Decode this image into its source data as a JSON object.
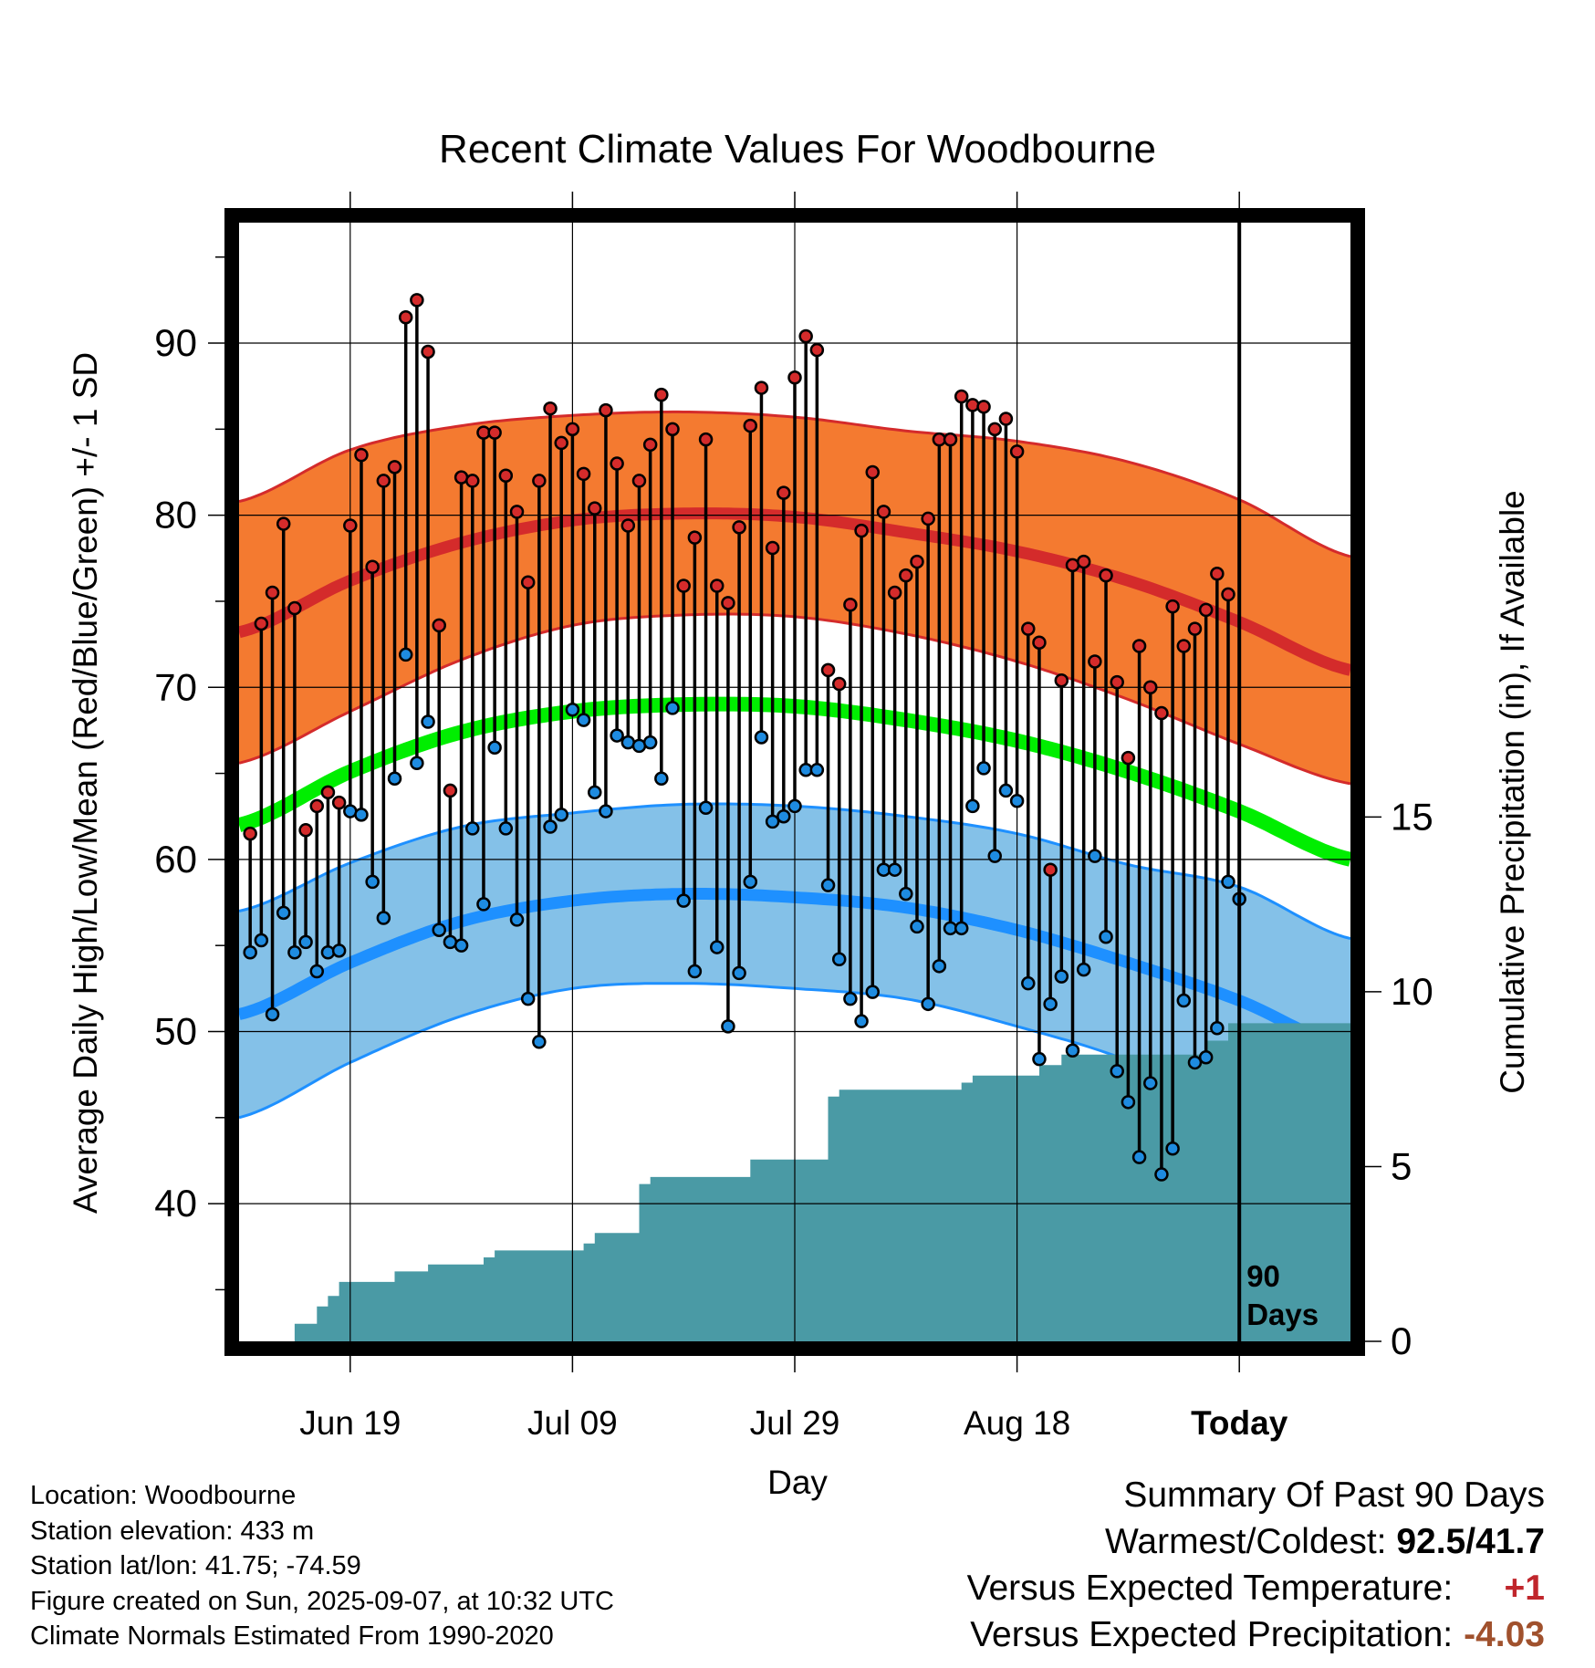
{
  "chart_data": {
    "type": "line",
    "title": "Recent Climate Values For Woodbourne",
    "xlabel": "Day",
    "ylabel": "Average Daily High/Low/Mean (Red/Blue/Green) +/- 1 SD",
    "y2label": "Cumulative Precipitation (in), If Available",
    "x_tick_labels": [
      "Jun 19",
      "Jul 09",
      "Jul 29",
      "Aug 18",
      "Today"
    ],
    "y_ticks": [
      40,
      50,
      60,
      70,
      80,
      90
    ],
    "y2_ticks": [
      0,
      5,
      10,
      15
    ],
    "ylim": [
      32,
      97
    ],
    "y2lim": [
      0,
      32
    ],
    "xlim_days": [
      -90,
      10
    ],
    "today_label": "90\nDays",
    "grid": true,
    "colors": {
      "high_band": "#f47a30",
      "high_line": "#d42b2b",
      "low_band": "#84c1e8",
      "low_line": "#1e90ff",
      "mean_line": "#00ee00",
      "precip_fill": "#4a9aa5",
      "high_marker": "#d42b2b",
      "low_marker": "#1e8be0"
    },
    "normals": {
      "x": [
        -90,
        -80,
        -70,
        -60,
        -50,
        -40,
        -30,
        -20,
        -10,
        0,
        10
      ],
      "high_mean": [
        73.2,
        76.2,
        78.4,
        79.7,
        80.1,
        79.9,
        79.0,
        77.9,
        76.2,
        73.8,
        71.0
      ],
      "high_sd": [
        7.6,
        7.6,
        6.8,
        6.1,
        5.9,
        5.8,
        5.9,
        6.4,
        6.9,
        7.1,
        6.6
      ],
      "low_mean": [
        51.0,
        54.0,
        56.4,
        57.6,
        58.0,
        57.8,
        57.2,
        55.9,
        54.0,
        51.8,
        49.0
      ],
      "low_sd": [
        6.0,
        5.8,
        5.5,
        5.1,
        5.2,
        5.3,
        5.3,
        5.6,
        5.7,
        6.6,
        6.4
      ],
      "mean": [
        62.0,
        65.1,
        67.4,
        68.6,
        69.0,
        68.9,
        68.1,
        66.9,
        65.1,
        62.8,
        60.0
      ]
    },
    "series": [
      {
        "name": "High",
        "x": [
          -89,
          -88,
          -87,
          -86,
          -85,
          -84,
          -83,
          -82,
          -81,
          -80,
          -79,
          -78,
          -77,
          -76,
          -75,
          -74,
          -73,
          -72,
          -71,
          -70,
          -69,
          -68,
          -67,
          -66,
          -65,
          -64,
          -63,
          -62,
          -61,
          -60,
          -59,
          -58,
          -57,
          -56,
          -55,
          -54,
          -53,
          -52,
          -51,
          -50,
          -49,
          -48,
          -47,
          -46,
          -45,
          -44,
          -43,
          -42,
          -41,
          -40,
          -39,
          -38,
          -37,
          -36,
          -35,
          -34,
          -33,
          -32,
          -31,
          -30,
          -29,
          -28,
          -27,
          -26,
          -25,
          -24,
          -23,
          -22,
          -21,
          -20,
          -19,
          -18,
          -17,
          -16,
          -15,
          -14,
          -13,
          -12,
          -11,
          -10,
          -9,
          -8,
          -7,
          -6,
          -5,
          -4,
          -3,
          -2,
          -1
        ],
        "values": [
          61.5,
          73.7,
          75.5,
          79.5,
          74.6,
          61.7,
          63.1,
          63.9,
          63.3,
          79.4,
          83.5,
          77.0,
          82.0,
          82.8,
          91.5,
          92.5,
          89.5,
          73.6,
          64.0,
          82.2,
          82.0,
          84.8,
          84.8,
          82.3,
          80.2,
          76.1,
          82.0,
          86.2,
          84.2,
          85.0,
          82.4,
          80.4,
          86.1,
          83.0,
          79.4,
          82.0,
          84.1,
          87.0,
          85.0,
          75.9,
          78.7,
          84.4,
          75.9,
          74.9,
          79.3,
          85.2,
          87.4,
          78.1,
          81.3,
          88.0,
          90.4,
          89.6,
          71.0,
          70.2,
          74.8,
          79.1,
          82.5,
          80.2,
          75.5,
          76.5,
          77.3,
          79.8,
          84.4,
          84.4,
          86.9,
          86.4,
          86.3,
          85.0,
          85.6,
          83.7,
          73.4,
          72.6,
          59.4,
          70.4,
          77.1,
          77.3,
          71.5,
          76.5,
          70.3,
          65.9,
          72.4,
          70.0,
          68.5,
          74.7,
          72.4,
          73.4,
          74.5,
          76.6,
          75.4
        ]
      },
      {
        "name": "Low",
        "x": [
          -89,
          -88,
          -87,
          -86,
          -85,
          -84,
          -83,
          -82,
          -81,
          -80,
          -79,
          -78,
          -77,
          -76,
          -75,
          -74,
          -73,
          -72,
          -71,
          -70,
          -69,
          -68,
          -67,
          -66,
          -65,
          -64,
          -63,
          -62,
          -61,
          -60,
          -59,
          -58,
          -57,
          -56,
          -55,
          -54,
          -53,
          -52,
          -51,
          -50,
          -49,
          -48,
          -47,
          -46,
          -45,
          -44,
          -43,
          -42,
          -41,
          -40,
          -39,
          -38,
          -37,
          -36,
          -35,
          -34,
          -33,
          -32,
          -31,
          -30,
          -29,
          -28,
          -27,
          -26,
          -25,
          -24,
          -23,
          -22,
          -21,
          -20,
          -19,
          -18,
          -17,
          -16,
          -15,
          -14,
          -13,
          -12,
          -11,
          -10,
          -9,
          -8,
          -7,
          -6,
          -5,
          -4,
          -3,
          -2,
          -1,
          0
        ],
        "values": [
          54.6,
          55.3,
          51.0,
          56.9,
          54.6,
          55.2,
          53.5,
          54.6,
          54.7,
          62.8,
          62.6,
          58.7,
          56.6,
          64.7,
          71.9,
          65.6,
          68.0,
          55.9,
          55.2,
          55.0,
          61.8,
          57.4,
          66.5,
          61.8,
          56.5,
          51.9,
          49.4,
          61.9,
          62.6,
          68.7,
          68.1,
          63.9,
          62.8,
          67.2,
          66.8,
          66.6,
          66.8,
          64.7,
          68.8,
          57.6,
          53.5,
          63.0,
          54.9,
          50.3,
          53.4,
          58.7,
          67.1,
          62.2,
          62.5,
          63.1,
          65.2,
          65.2,
          58.5,
          54.2,
          51.9,
          50.6,
          52.3,
          59.4,
          59.4,
          58.0,
          56.1,
          51.6,
          53.8,
          56.0,
          56.0,
          63.1,
          65.3,
          60.2,
          64.0,
          63.4,
          52.8,
          48.4,
          51.6,
          53.2,
          48.9,
          53.6,
          60.2,
          55.5,
          47.7,
          45.9,
          42.7,
          47.0,
          41.7,
          43.2,
          51.8,
          48.2,
          48.5,
          50.2,
          58.7,
          57.7
        ]
      },
      {
        "name": "Cumulative Precipitation",
        "x": [
          -90,
          -86,
          -85,
          -84,
          -83,
          -82,
          -81,
          -80,
          -79,
          -78,
          -76,
          -75,
          -73,
          -71,
          -70,
          -68,
          -67,
          -65,
          -64,
          -62,
          -60,
          -59,
          -58,
          -57,
          -55,
          -54,
          -53,
          -52,
          -51,
          -49,
          -47,
          -45,
          -44,
          -42,
          -41,
          -39,
          -38,
          -37,
          -36,
          -35,
          -33,
          -31,
          -29,
          -27,
          -25,
          -24,
          -22,
          -20,
          -19,
          -18,
          -16,
          -14,
          -12,
          -10,
          -9,
          -8,
          -6,
          -4,
          -3,
          -2,
          -1,
          0,
          10
        ],
        "values": [
          0,
          0,
          0.5,
          0.5,
          1.0,
          1.3,
          1.7,
          1.7,
          1.7,
          1.7,
          2.0,
          2.0,
          2.2,
          2.2,
          2.2,
          2.4,
          2.6,
          2.6,
          2.6,
          2.6,
          2.6,
          2.8,
          3.1,
          3.1,
          3.1,
          4.5,
          4.7,
          4.7,
          4.7,
          4.7,
          4.7,
          4.7,
          5.2,
          5.2,
          5.2,
          5.2,
          5.2,
          7.0,
          7.2,
          7.2,
          7.2,
          7.2,
          7.2,
          7.2,
          7.4,
          7.6,
          7.6,
          7.6,
          7.6,
          7.9,
          8.2,
          8.2,
          8.2,
          8.2,
          8.2,
          8.2,
          8.2,
          8.2,
          8.6,
          8.6,
          9.1,
          9.1,
          9.1
        ]
      }
    ]
  },
  "info": {
    "location": "Location: Woodbourne",
    "elevation": "Station elevation: 433 m",
    "latlon": "Station lat/lon: 41.75; -74.59",
    "created": "Figure created on Sun, 2025-09-07, at 10:32 UTC",
    "normals": "Climate Normals Estimated From 1990-2020"
  },
  "summary": {
    "title": "Summary Of Past 90 Days",
    "warm_cold_label": "Warmest/Coldest:",
    "warm_cold_value": "92.5/41.7",
    "temp_label": "Versus Expected Temperature:",
    "temp_value": "+1",
    "precip_label": "Versus Expected Precipitation:",
    "precip_value": "-4.03"
  }
}
